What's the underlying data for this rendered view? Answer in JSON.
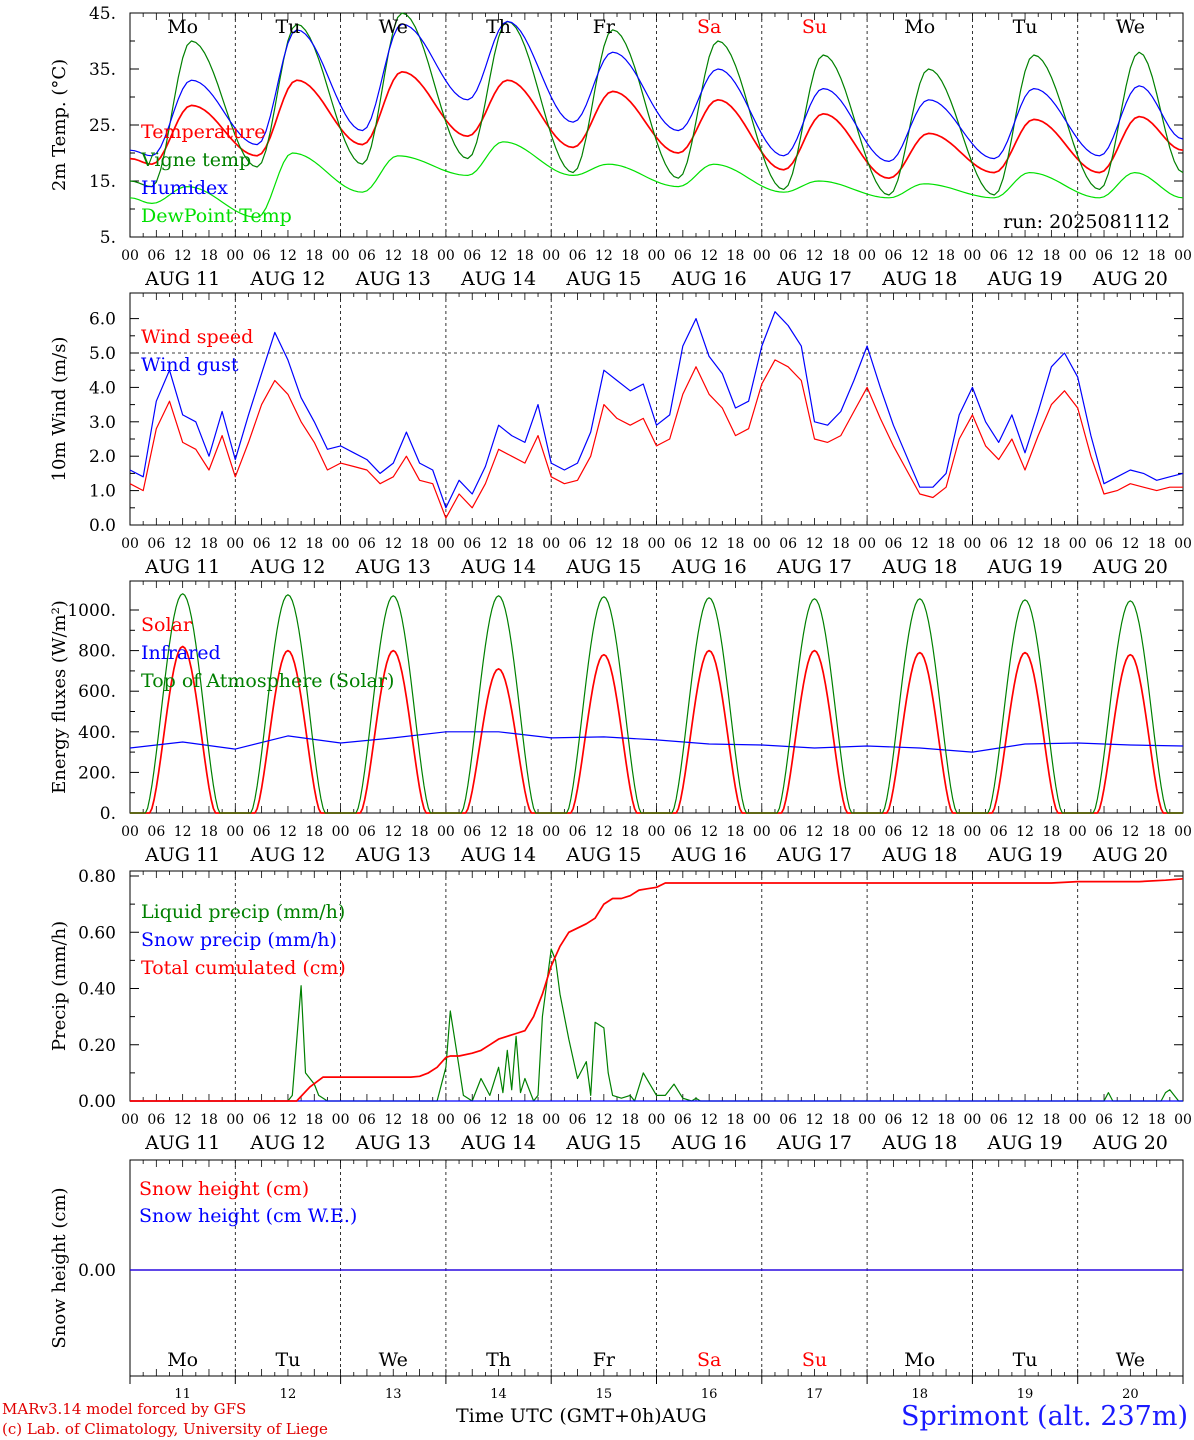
{
  "run_label": "run: 2025081112",
  "colors": {
    "temperature": "#ff0000",
    "vigne_temp": "#008000",
    "humidex": "#0000ff",
    "dewpoint": "#00e000",
    "wind_speed": "#ff0000",
    "wind_gust": "#0000ff",
    "solar": "#ff0000",
    "infrared": "#0000ff",
    "toa_solar": "#008000",
    "liquid_precip": "#008000",
    "snow_precip": "#0000ff",
    "total_cumulated": "#ff0000",
    "snow_height": "#ff0000",
    "snow_height_we": "#0000ff",
    "weekend_day": "#ff0000",
    "weekday": "#000000",
    "station": "#1a1aff"
  },
  "chart_data": {
    "type": "line",
    "x_unit": "hours since 2025-08-11 00 UTC",
    "x_range": [
      0,
      240
    ],
    "hour_ticks": [
      "00",
      "06",
      "12",
      "18"
    ],
    "end_tick": "00",
    "dates": [
      "AUG 11",
      "AUG 12",
      "AUG 13",
      "AUG 14",
      "AUG 15",
      "AUG 16",
      "AUG 17",
      "AUG 18",
      "AUG 19",
      "AUG 20"
    ],
    "day_numbers": [
      "11",
      "12",
      "13",
      "14",
      "15",
      "16",
      "17",
      "18",
      "19",
      "20"
    ],
    "weekdays": [
      "Mo",
      "Tu",
      "We",
      "Th",
      "Fr",
      "Sa",
      "Su",
      "Mo",
      "Tu",
      "We"
    ],
    "weekend_flags": [
      false,
      false,
      false,
      false,
      false,
      true,
      true,
      false,
      false,
      false
    ],
    "month_label": "AUG",
    "x_title": "Time UTC (GMT+0h)",
    "panels": [
      {
        "id": "temp",
        "ylabel": "2m Temp. (°C)",
        "ylim": [
          5,
          45
        ],
        "yticks": [
          "5.",
          "15.",
          "25.",
          "35.",
          "45."
        ],
        "grid": "dashed vertical at 00 UTC",
        "legend": [
          "Temperature",
          "Vigne temp",
          "Humidex",
          "DewPoint Temp"
        ],
        "series": [
          {
            "name": "Temperature",
            "min": [
              18,
              19.5,
              21.5,
              23,
              21,
              20,
              17,
              15.5,
              16.5,
              16.5
            ],
            "max": [
              28.5,
              33,
              34.5,
              33,
              31,
              29.5,
              27,
              23.5,
              26,
              26.5
            ],
            "end": 20.5
          },
          {
            "name": "Vigne temp",
            "min": [
              14,
              17.5,
              18,
              19,
              16.5,
              15.5,
              13.5,
              12.5,
              12.5,
              13.5
            ],
            "max": [
              40,
              43,
              45,
              43.5,
              42,
              40,
              37.5,
              35,
              37.5,
              38
            ],
            "end": 16.5
          },
          {
            "name": "Humidex",
            "min": [
              19.5,
              21.5,
              24,
              29.5,
              25.5,
              24,
              19.5,
              18.5,
              19,
              19.5
            ],
            "max": [
              33,
              42,
              43,
              43.5,
              38,
              35,
              31.5,
              29.5,
              31.5,
              32
            ],
            "end": 22.5
          },
          {
            "name": "DewPoint Temp",
            "min": [
              11,
              8.5,
              13,
              16,
              16,
              14,
              13,
              12,
              12,
              12
            ],
            "max": [
              14,
              20,
              19.5,
              22,
              18,
              18,
              15,
              14.5,
              16.5,
              16.5
            ],
            "end": 12
          }
        ]
      },
      {
        "id": "wind",
        "ylabel": "10m Wind (m/s)",
        "ylim": [
          0,
          6.5
        ],
        "yticks": [
          "0.0",
          "1.0",
          "2.0",
          "3.0",
          "4.0",
          "5.0",
          "6.0"
        ],
        "ref_line": 5.0,
        "legend": [
          "Wind speed",
          "Wind gust"
        ],
        "series": [
          {
            "name": "Wind speed",
            "x": [
              0,
              3,
              6,
              9,
              12,
              15,
              18,
              21,
              24,
              27,
              30,
              33,
              36,
              39,
              42,
              45,
              48,
              51,
              54,
              57,
              60,
              63,
              66,
              69,
              72,
              75,
              78,
              81,
              84,
              87,
              90,
              93,
              96,
              99,
              102,
              105,
              108,
              111,
              114,
              117,
              120,
              123,
              126,
              129,
              132,
              135,
              138,
              141,
              144,
              147,
              150,
              153,
              156,
              159,
              162,
              165,
              168,
              171,
              174,
              177,
              180,
              183,
              186,
              189,
              192,
              195,
              198,
              201,
              204,
              207,
              210,
              213,
              216,
              219,
              222,
              225,
              228,
              231,
              234,
              237,
              240
            ],
            "y": [
              1.2,
              1.0,
              2.8,
              3.6,
              2.4,
              2.2,
              1.6,
              2.6,
              1.4,
              2.4,
              3.5,
              4.2,
              3.8,
              3.0,
              2.4,
              1.6,
              1.8,
              1.7,
              1.6,
              1.2,
              1.4,
              2.0,
              1.3,
              1.2,
              0.2,
              0.9,
              0.5,
              1.2,
              2.2,
              2.0,
              1.8,
              2.6,
              1.4,
              1.2,
              1.3,
              2.0,
              3.5,
              3.1,
              2.9,
              3.1,
              2.3,
              2.5,
              3.8,
              4.6,
              3.8,
              3.4,
              2.6,
              2.8,
              4.1,
              4.8,
              4.6,
              4.2,
              2.5,
              2.4,
              2.6,
              3.3,
              4.0,
              3.1,
              2.3,
              1.6,
              0.9,
              0.8,
              1.1,
              2.5,
              3.2,
              2.3,
              1.9,
              2.5,
              1.6,
              2.6,
              3.5,
              3.9,
              3.4,
              2.0,
              0.9,
              1.0,
              1.2,
              1.1,
              1.0,
              1.1,
              1.1
            ]
          },
          {
            "name": "Wind gust",
            "x": [
              0,
              3,
              6,
              9,
              12,
              15,
              18,
              21,
              24,
              27,
              30,
              33,
              36,
              39,
              42,
              45,
              48,
              51,
              54,
              57,
              60,
              63,
              66,
              69,
              72,
              75,
              78,
              81,
              84,
              87,
              90,
              93,
              96,
              99,
              102,
              105,
              108,
              111,
              114,
              117,
              120,
              123,
              126,
              129,
              132,
              135,
              138,
              141,
              144,
              147,
              150,
              153,
              156,
              159,
              162,
              165,
              168,
              171,
              174,
              177,
              180,
              183,
              186,
              189,
              192,
              195,
              198,
              201,
              204,
              207,
              210,
              213,
              216,
              219,
              222,
              225,
              228,
              231,
              234,
              237,
              240
            ],
            "y": [
              1.6,
              1.4,
              3.6,
              4.5,
              3.2,
              3.0,
              2.0,
              3.3,
              1.9,
              3.2,
              4.4,
              5.6,
              4.8,
              3.7,
              3.0,
              2.2,
              2.3,
              2.1,
              1.9,
              1.5,
              1.8,
              2.7,
              1.8,
              1.6,
              0.5,
              1.3,
              0.9,
              1.7,
              2.9,
              2.6,
              2.4,
              3.5,
              1.8,
              1.6,
              1.8,
              2.7,
              4.5,
              4.2,
              3.9,
              4.1,
              2.9,
              3.2,
              5.2,
              6.0,
              4.9,
              4.4,
              3.4,
              3.6,
              5.2,
              6.2,
              5.8,
              5.2,
              3.0,
              2.9,
              3.3,
              4.2,
              5.2,
              4.0,
              2.9,
              2.0,
              1.1,
              1.1,
              1.5,
              3.2,
              4.0,
              3.0,
              2.4,
              3.2,
              2.1,
              3.3,
              4.6,
              5.0,
              4.3,
              2.6,
              1.2,
              1.4,
              1.6,
              1.5,
              1.3,
              1.4,
              1.5
            ]
          }
        ]
      },
      {
        "id": "energy",
        "ylabel": "Energy fluxes (W/m²)",
        "ylim": [
          0,
          1100
        ],
        "yticks": [
          "0.",
          "200.",
          "400.",
          "600.",
          "800.",
          "1000."
        ],
        "legend": [
          "Solar",
          "Infrared",
          "Top of Atmosphere (Solar)"
        ],
        "series": [
          {
            "name": "Solar",
            "daily_peak": [
              820,
              800,
              800,
              710,
              780,
              800,
              800,
              790,
              790,
              780
            ],
            "sunrise_h": 4.5,
            "sunset_h": 19.5
          },
          {
            "name": "Infrared",
            "x": [
              0,
              12,
              24,
              36,
              48,
              60,
              72,
              84,
              96,
              108,
              120,
              132,
              144,
              156,
              168,
              180,
              192,
              204,
              216,
              228,
              240
            ],
            "y": [
              320,
              350,
              315,
              380,
              345,
              370,
              400,
              400,
              370,
              375,
              360,
              340,
              335,
              320,
              330,
              320,
              300,
              340,
              345,
              335,
              330
            ]
          },
          {
            "name": "Top of Atmosphere (Solar)",
            "daily_peak": [
              1080,
              1075,
              1070,
              1070,
              1065,
              1060,
              1055,
              1055,
              1050,
              1045
            ],
            "sunrise_h": 3.5,
            "sunset_h": 20.5
          }
        ]
      },
      {
        "id": "precip",
        "ylabel": "Precip (mm/h)",
        "ylim": [
          0,
          0.8
        ],
        "yticks": [
          "0.00",
          "0.20",
          "0.40",
          "0.60",
          "0.80"
        ],
        "legend": [
          "Liquid precip (mm/h)",
          "Snow precip (mm/h)",
          "Total cumulated (cm)"
        ],
        "series": [
          {
            "name": "Liquid precip (mm/h)",
            "x": [
              0,
              36,
              37,
              39,
              40,
              42,
              43,
              45,
              70,
              72,
              73,
              75,
              76,
              78,
              80,
              82,
              84,
              85,
              86,
              87,
              88,
              89,
              90,
              92,
              93,
              94,
              96,
              97,
              98,
              100,
              102,
              104,
              105,
              106,
              108,
              109,
              110,
              112,
              114,
              115,
              117,
              120,
              122,
              124,
              126,
              128,
              129,
              130,
              132,
              133,
              136,
              138,
              140,
              142,
              144,
              216,
              222,
              223,
              224,
              226,
              228,
              232,
              235,
              236,
              237,
              239,
              240
            ],
            "y": [
              0,
              0,
              0.02,
              0.41,
              0.1,
              0.06,
              0.02,
              0,
              0,
              0.12,
              0.32,
              0.12,
              0.02,
              0,
              0.08,
              0.02,
              0.12,
              0.03,
              0.18,
              0.04,
              0.23,
              0.03,
              0.08,
              0,
              0.02,
              0.3,
              0.54,
              0.5,
              0.38,
              0.22,
              0.08,
              0.14,
              0.02,
              0.28,
              0.26,
              0.1,
              0.02,
              0.01,
              0.02,
              0,
              0.1,
              0.02,
              0.02,
              0.06,
              0.01,
              0,
              0.01,
              0,
              0,
              0,
              0,
              0,
              0,
              0,
              0,
              0,
              0,
              0.03,
              0,
              0,
              0,
              0,
              0,
              0.03,
              0.04,
              0,
              0
            ]
          },
          {
            "name": "Snow precip (mm/h)",
            "x": [
              0,
              240
            ],
            "y": [
              0,
              0
            ]
          },
          {
            "name": "Total cumulated (cm)",
            "x": [
              0,
              38,
              41,
              44,
              64,
              66,
              68,
              70,
              72,
              73,
              75,
              78,
              80,
              82,
              84,
              86,
              88,
              90,
              92,
              94,
              96,
              98,
              100,
              104,
              106,
              108,
              110,
              112,
              114,
              116,
              118,
              120,
              122,
              124,
              126,
              128,
              130,
              132,
              134,
              136,
              150,
              210,
              216,
              230,
              236,
              240
            ],
            "y": [
              0,
              0,
              0.05,
              0.085,
              0.085,
              0.088,
              0.1,
              0.12,
              0.155,
              0.16,
              0.16,
              0.17,
              0.18,
              0.2,
              0.22,
              0.23,
              0.24,
              0.25,
              0.3,
              0.38,
              0.48,
              0.55,
              0.6,
              0.63,
              0.65,
              0.7,
              0.72,
              0.72,
              0.73,
              0.75,
              0.755,
              0.76,
              0.775,
              0.775,
              0.775,
              0.775,
              0.775,
              0.775,
              0.775,
              0.775,
              0.775,
              0.775,
              0.78,
              0.78,
              0.785,
              0.79
            ]
          }
        ]
      },
      {
        "id": "snow",
        "ylabel": "Snow height (cm)",
        "ylim": [
          -1,
          1
        ],
        "yticks": [
          "0.00"
        ],
        "legend": [
          "Snow height (cm)",
          "Snow height (cm W.E.)"
        ],
        "series": [
          {
            "name": "Snow height (cm)",
            "x": [
              0,
              240
            ],
            "y": [
              0,
              0
            ]
          },
          {
            "name": "Snow height (cm W.E.)",
            "x": [
              0,
              240
            ],
            "y": [
              0,
              0
            ]
          }
        ]
      }
    ]
  },
  "footer": {
    "model_credit": "MARv3.14 model forced by GFS",
    "lab_credit": "(c) Lab. of Climatology, University of Liege",
    "station": "Sprimont (alt. 237m)"
  }
}
